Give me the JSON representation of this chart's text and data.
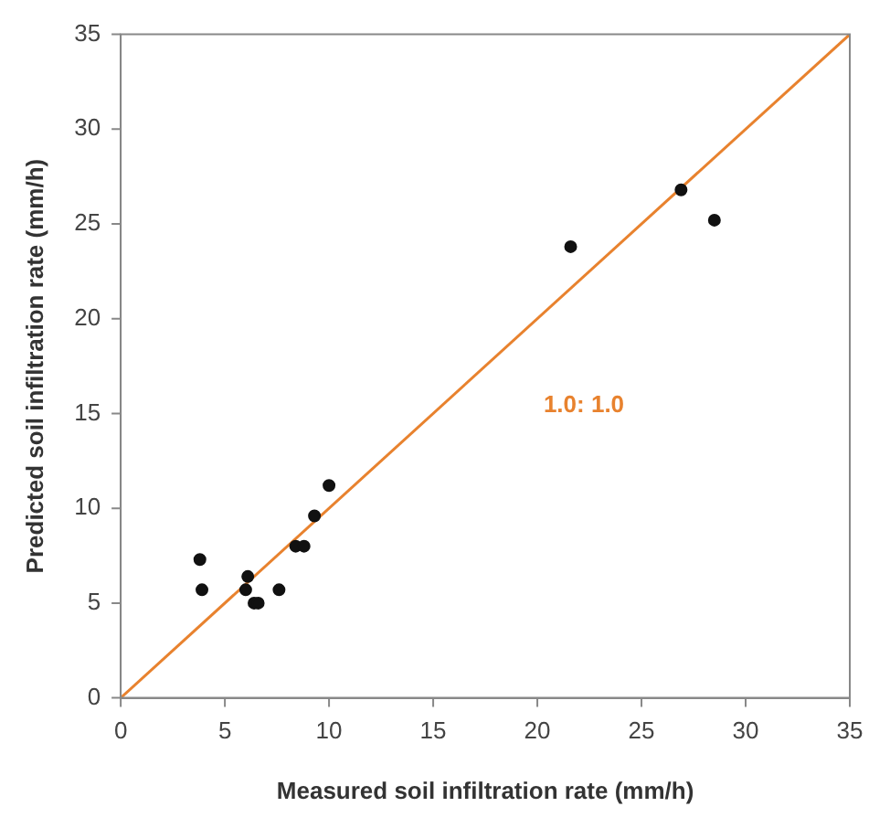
{
  "chart_data": {
    "type": "scatter",
    "xlabel": "Measured soil infiltration rate (mm/h)",
    "ylabel": "Predicted soil infiltration rate (mm/h)",
    "xlim": [
      0,
      35
    ],
    "ylim": [
      0,
      35
    ],
    "xticks": [
      0,
      5,
      10,
      15,
      20,
      25,
      30,
      35
    ],
    "yticks": [
      0,
      5,
      10,
      15,
      20,
      25,
      30,
      35
    ],
    "grid": false,
    "legend": false,
    "series": [
      {
        "marker": "circle",
        "color": "#111111",
        "x": [
          3.8,
          3.9,
          6.1,
          6.0,
          6.4,
          6.6,
          7.6,
          8.4,
          8.8,
          9.3,
          10.0,
          21.6,
          26.9,
          28.5
        ],
        "values": [
          7.3,
          5.7,
          6.4,
          5.7,
          5.0,
          5.0,
          5.7,
          8.0,
          8.0,
          9.6,
          11.2,
          23.8,
          26.8,
          25.2
        ]
      },
      {
        "type": "line",
        "marker": "none",
        "color": "#e8822e",
        "x": [
          0,
          35
        ],
        "values": [
          0,
          35
        ]
      }
    ],
    "annotations": [
      "1.0: 1.0"
    ]
  }
}
